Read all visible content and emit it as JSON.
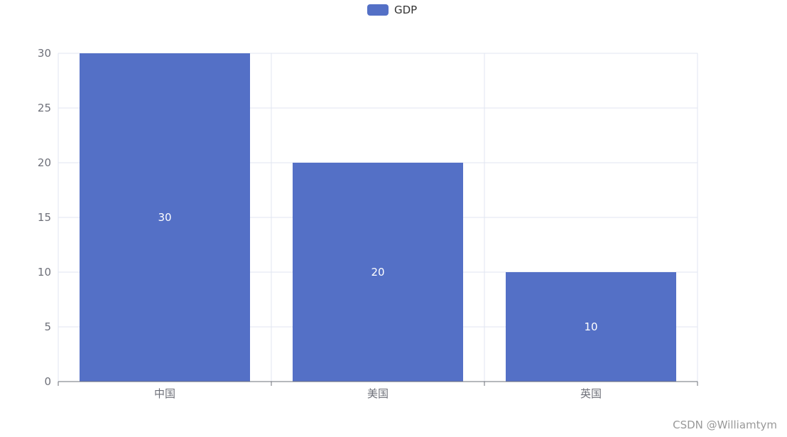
{
  "chart_data": {
    "type": "bar",
    "categories": [
      "中国",
      "美国",
      "英国"
    ],
    "series": [
      {
        "name": "GDP",
        "values": [
          30,
          20,
          10
        ]
      }
    ],
    "ylim": [
      0,
      30
    ],
    "y_ticks": [
      0,
      5,
      10,
      15,
      20,
      25,
      30
    ],
    "grid": true,
    "legend_position": "top-center",
    "data_labels": "inside-center",
    "colors": {
      "bar": "#5470c6",
      "grid": "#e0e6f1",
      "axis": "#6e7079",
      "label": "#ffffff"
    }
  },
  "watermark": "CSDN @Williamtym"
}
